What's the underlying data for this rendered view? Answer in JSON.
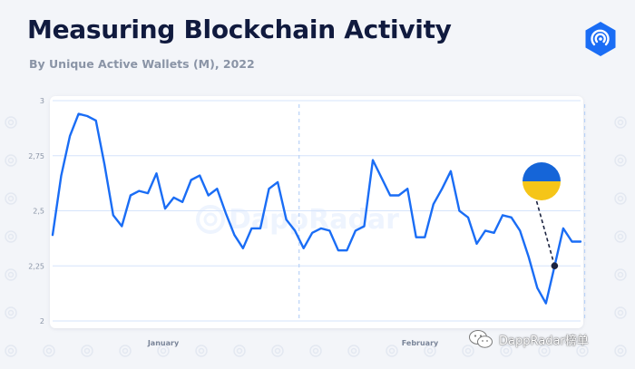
{
  "header": {
    "title": "Measuring Blockchain Activity",
    "subtitle": "By Unique Active Wallets (M), 2022",
    "logo_icon": "dappradar-logo-icon",
    "brand_color": "#1a6df5"
  },
  "watermark": {
    "icon": "wechat-icon",
    "text": "DappRadar榜单",
    "brand_text": "DappRadar"
  },
  "colors": {
    "line": "#1a6df5",
    "grid": "#d6e4fb",
    "flag_top": "#1565d8",
    "flag_bottom": "#f5c518"
  },
  "chart_data": {
    "type": "line",
    "title": "Measuring Blockchain Activity",
    "subtitle": "By Unique Active Wallets (M), 2022",
    "xlabel": "",
    "ylabel": "",
    "ylim": [
      2,
      3
    ],
    "yticks": [
      2,
      2.25,
      2.5,
      2.75,
      3
    ],
    "ytick_labels": [
      "2",
      "2,25",
      "2,5",
      "2,75",
      "3"
    ],
    "xtick_labels": [
      "January",
      "February"
    ],
    "month_divider_indices": [
      29,
      62
    ],
    "grid": true,
    "legend": "none",
    "annotation": {
      "label": "Ukraine flag",
      "point_index": 58
    },
    "series": [
      {
        "values": [
          2.39,
          2.66,
          2.84,
          2.94,
          2.93,
          2.91,
          2.71,
          2.48,
          2.43,
          2.57,
          2.59,
          2.58,
          2.67,
          2.51,
          2.56,
          2.54,
          2.64,
          2.66,
          2.57,
          2.6,
          2.49,
          2.39,
          2.33,
          2.42,
          2.42,
          2.6,
          2.63,
          2.46,
          2.41,
          2.33,
          2.4,
          2.42,
          2.41,
          2.32,
          2.32,
          2.41,
          2.43,
          2.73,
          2.65,
          2.57,
          2.57,
          2.6,
          2.38,
          2.38,
          2.53,
          2.6,
          2.68,
          2.5,
          2.47,
          2.35,
          2.41,
          2.4,
          2.48,
          2.47,
          2.41,
          2.29,
          2.15,
          2.08,
          2.25,
          2.42,
          2.36,
          2.36
        ]
      }
    ]
  }
}
